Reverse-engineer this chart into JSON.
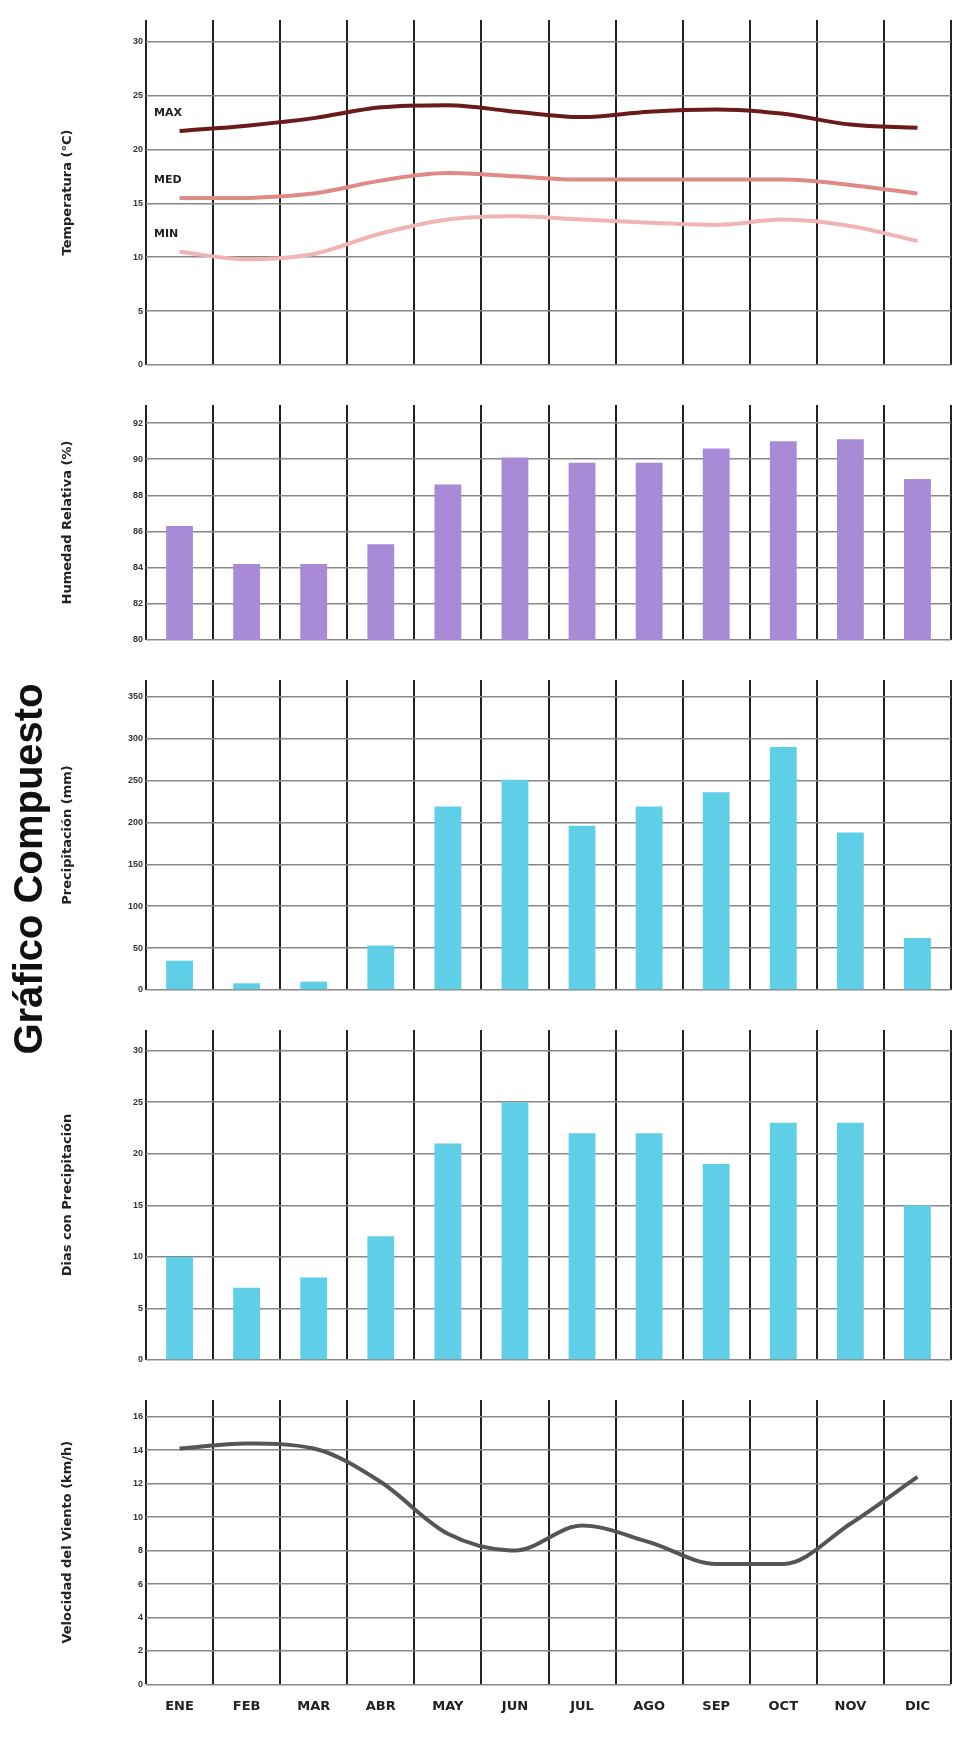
{
  "chart_data": [
    {
      "type": "line",
      "title": "Gráfico Compuesto",
      "ylabel": "Temperatura (°C)",
      "categories": [
        null,
        null,
        null,
        null,
        null,
        null,
        null,
        null,
        null,
        null,
        null,
        null
      ],
      "series": [
        {
          "name": "MAX",
          "color": "#6b1a1a",
          "values": [
            21.7,
            22.2,
            22.9,
            23.9,
            24.1,
            23.5,
            23.0,
            23.5,
            23.7,
            23.3,
            22.3,
            22.0
          ]
        },
        {
          "name": "MED",
          "color": "#e08a88",
          "values": [
            15.5,
            15.5,
            15.9,
            17.1,
            17.8,
            17.5,
            17.2,
            17.2,
            17.2,
            17.2,
            16.7,
            15.9
          ]
        },
        {
          "name": "MIN",
          "color": "#f0b4b4",
          "values": [
            10.5,
            9.8,
            10.3,
            12.2,
            13.5,
            13.8,
            13.5,
            13.2,
            13.0,
            13.5,
            12.9,
            11.5
          ]
        }
      ],
      "ylim": [
        0,
        32
      ],
      "yticks": [
        0,
        5,
        10,
        15,
        20,
        25,
        30
      ],
      "grid": true,
      "legend": false,
      "tick_labels": "y",
      "marker": "none"
    },
    {
      "type": "bar",
      "ylabel": "Humedad Relativa (%)",
      "categories": [
        null,
        null,
        null,
        null,
        null,
        null,
        null,
        null,
        null,
        null,
        null,
        null
      ],
      "values": [
        86.3,
        84.2,
        84.2,
        85.3,
        88.6,
        90.1,
        89.8,
        89.8,
        90.6,
        91.0,
        91.1,
        88.9
      ],
      "color": "#a98ad6",
      "ylim": [
        80,
        93
      ],
      "yticks": [
        80,
        82,
        84,
        86,
        88,
        90,
        92
      ],
      "grid": true,
      "legend": false,
      "tick_labels": "y"
    },
    {
      "type": "bar",
      "ylabel": "Precipitación (mm)",
      "categories": [
        null,
        null,
        null,
        null,
        null,
        null,
        null,
        null,
        null,
        null,
        null,
        null
      ],
      "values": [
        35,
        8,
        10,
        53,
        219,
        251,
        196,
        219,
        236,
        290,
        188,
        62
      ],
      "color": "#5fcfe8",
      "ylim": [
        0,
        370
      ],
      "yticks": [
        0,
        50,
        100,
        150,
        200,
        250,
        300,
        350
      ],
      "grid": true,
      "legend": false,
      "tick_labels": "y"
    },
    {
      "type": "bar",
      "ylabel": "Dias con Precipitación",
      "categories": [
        null,
        null,
        null,
        null,
        null,
        null,
        null,
        null,
        null,
        null,
        null,
        null
      ],
      "values": [
        10,
        7,
        8,
        12,
        21,
        25,
        22,
        22,
        19,
        23,
        23,
        15
      ],
      "color": "#5fcfe8",
      "ylim": [
        0,
        32
      ],
      "yticks": [
        0,
        5,
        10,
        15,
        20,
        25,
        30
      ],
      "grid": true,
      "legend": false,
      "tick_labels": "y"
    },
    {
      "type": "line",
      "ylabel": "Velocidad del Viento (km/h)",
      "categories": [
        "ENE",
        "FEB",
        "MAR",
        "ABR",
        "MAY",
        "JUN",
        "JUL",
        "AGO",
        "SEP",
        "OCT",
        "NOV",
        "DIC"
      ],
      "series": [
        {
          "color": "#555555",
          "values": [
            14.1,
            14.4,
            14.1,
            12.1,
            9.0,
            8.0,
            9.5,
            8.5,
            7.2,
            7.2,
            9.6,
            12.4
          ]
        }
      ],
      "ylim": [
        0,
        17
      ],
      "yticks": [
        0,
        2,
        4,
        6,
        8,
        10,
        12,
        14,
        16
      ],
      "grid": true,
      "legend": false,
      "marker": "none"
    }
  ]
}
